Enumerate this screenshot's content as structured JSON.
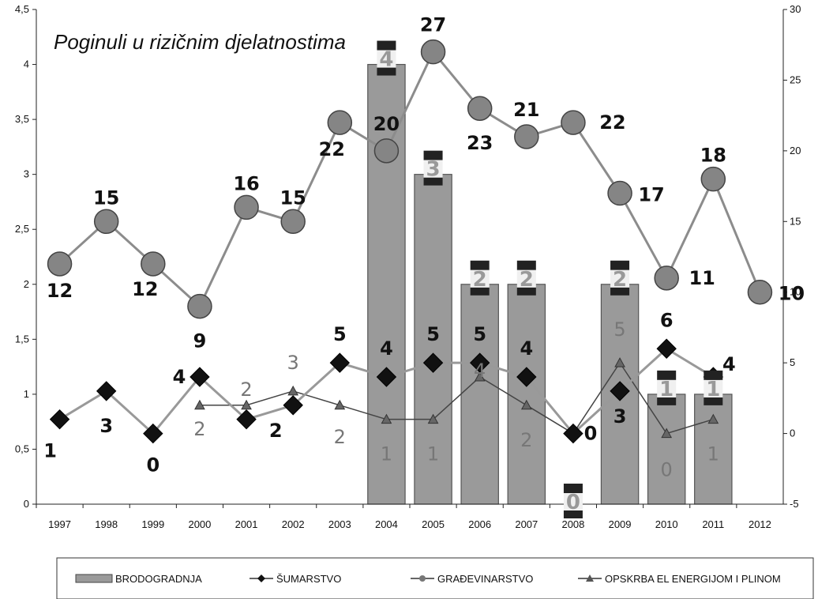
{
  "chart_data": {
    "type": "bar",
    "title": "Poginuli u rizičnim djelatnostima",
    "categories": [
      "1997",
      "1998",
      "1999",
      "2000",
      "2001",
      "2002",
      "2003",
      "2004",
      "2005",
      "2006",
      "2007",
      "2008",
      "2009",
      "2010",
      "2011",
      "2012"
    ],
    "y_left": {
      "min": 0,
      "max": 4.5,
      "ticks": [
        "0",
        "0,5",
        "1",
        "1,5",
        "2",
        "2,5",
        "3",
        "3,5",
        "4",
        "4,5"
      ]
    },
    "y_right": {
      "min": -5,
      "max": 30,
      "ticks": [
        "-5",
        "0",
        "5",
        "10",
        "15",
        "20",
        "25",
        "30"
      ]
    },
    "series": [
      {
        "name": "BRODOGRADNJA",
        "kind": "bar",
        "axis": "left",
        "values": [
          null,
          null,
          null,
          null,
          null,
          null,
          null,
          4,
          3,
          2,
          2,
          0,
          2,
          1,
          1,
          null
        ],
        "labels": [
          "",
          "",
          "",
          "",
          "",
          "",
          "",
          "4",
          "3",
          "2",
          "2",
          "0",
          "2",
          "1",
          "1",
          ""
        ]
      },
      {
        "name": "ŠUMARSTVO",
        "kind": "line",
        "marker": "diamond",
        "axis": "right",
        "values": [
          1,
          3,
          0,
          4,
          1,
          2,
          5,
          4,
          5,
          5,
          4,
          0,
          3,
          6,
          4,
          null
        ],
        "labels": [
          "1",
          "3",
          "0",
          "4",
          "",
          "2",
          "5",
          "4",
          "5",
          "5",
          "4",
          "0",
          "3",
          "6",
          "4",
          ""
        ]
      },
      {
        "name": "GRAĐEVINARSTVO",
        "kind": "line",
        "marker": "circle",
        "axis": "right",
        "values": [
          12,
          15,
          12,
          9,
          16,
          15,
          22,
          20,
          27,
          23,
          21,
          22,
          17,
          11,
          18,
          10
        ],
        "labels": [
          "12",
          "15",
          "12",
          "9",
          "16",
          "15",
          "22",
          "20",
          "27",
          "23",
          "21",
          "22",
          "17",
          "11",
          "18",
          "10"
        ]
      },
      {
        "name": "OPSKRBA EL ENERGIJOM I PLINOM",
        "kind": "line",
        "marker": "triangle",
        "axis": "right",
        "values": [
          null,
          null,
          null,
          2,
          2,
          3,
          2,
          1,
          1,
          4,
          2,
          0,
          5,
          0,
          1,
          null
        ],
        "labels": [
          "",
          "",
          "",
          "2",
          "2",
          "3",
          "2",
          "1",
          "1",
          "4",
          "2",
          "",
          "5",
          "0",
          "1",
          ""
        ]
      }
    ],
    "legend": "bottom",
    "grid": false
  }
}
